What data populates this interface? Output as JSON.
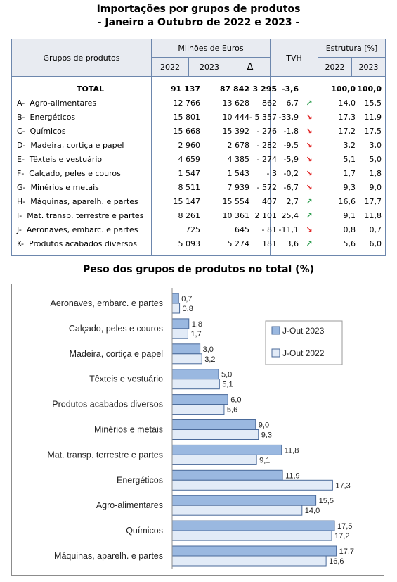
{
  "title_line1": "Importações por grupos de produtos",
  "title_line2": "- Janeiro a Outubro  de 2022 e 2023 -",
  "table": {
    "header": {
      "groups": "Grupos de produtos",
      "millions": "Milhões de Euros",
      "y2022": "2022",
      "y2023": "2023",
      "delta": "Δ",
      "tvh": "TVH",
      "structure": "Estrutura [%]",
      "s2022": "2022",
      "s2023": "2023"
    },
    "rows": [
      {
        "name": "TOTAL",
        "v2022": "91 137",
        "v2023": "87 842",
        "delta": "- 3 295",
        "tvh": "-3,6",
        "trend": "down",
        "s2022": "100,0",
        "s2023": "100,0"
      },
      {
        "name": "A-  Agro-alimentares",
        "v2022": "12 766",
        "v2023": "13 628",
        "delta": "862",
        "tvh": "6,7",
        "trend": "up",
        "s2022": "14,0",
        "s2023": "15,5"
      },
      {
        "name": "B-  Energéticos",
        "v2022": "15 801",
        "v2023": "10 444",
        "delta": "- 5 357",
        "tvh": "-33,9",
        "trend": "down",
        "s2022": "17,3",
        "s2023": "11,9"
      },
      {
        "name": "C-  Químicos",
        "v2022": "15 668",
        "v2023": "15 392",
        "delta": "- 276",
        "tvh": "-1,8",
        "trend": "down",
        "s2022": "17,2",
        "s2023": "17,5"
      },
      {
        "name": "D-  Madeira, cortiça e papel",
        "v2022": "2 960",
        "v2023": "2 678",
        "delta": "- 282",
        "tvh": "-9,5",
        "trend": "down",
        "s2022": "3,2",
        "s2023": "3,0"
      },
      {
        "name": "E-  Têxteis e vestuário",
        "v2022": "4 659",
        "v2023": "4 385",
        "delta": "- 274",
        "tvh": "-5,9",
        "trend": "down",
        "s2022": "5,1",
        "s2023": "5,0"
      },
      {
        "name": "F-  Calçado, peles e couros",
        "v2022": "1 547",
        "v2023": "1 543",
        "delta": "- 3",
        "tvh": "-0,2",
        "trend": "down",
        "s2022": "1,7",
        "s2023": "1,8"
      },
      {
        "name": "G-  Minérios e metais",
        "v2022": "8 511",
        "v2023": "7 939",
        "delta": "- 572",
        "tvh": "-6,7",
        "trend": "down",
        "s2022": "9,3",
        "s2023": "9,0"
      },
      {
        "name": "H-  Máquinas, aparelh. e partes",
        "v2022": "15 147",
        "v2023": "15 554",
        "delta": "407",
        "tvh": "2,7",
        "trend": "up",
        "s2022": "16,6",
        "s2023": "17,7"
      },
      {
        "name": "I-  Mat. transp. terrestre e partes",
        "v2022": "8 261",
        "v2023": "10 361",
        "delta": "2 101",
        "tvh": "25,4",
        "trend": "up",
        "s2022": "9,1",
        "s2023": "11,8"
      },
      {
        "name": "J-  Aeronaves, embarc. e partes",
        "v2022": "725",
        "v2023": "645",
        "delta": "- 81",
        "tvh": "-11,1",
        "trend": "down",
        "s2022": "0,8",
        "s2023": "0,7"
      },
      {
        "name": "K-  Produtos acabados diversos",
        "v2022": "5 093",
        "v2023": "5 274",
        "delta": "181",
        "tvh": "3,6",
        "trend": "up",
        "s2022": "5,6",
        "s2023": "6,0"
      }
    ],
    "trend_symbols": {
      "up": "↗",
      "down": "↘"
    },
    "trend_colors": {
      "up": "#2e9e4f",
      "down": "#e02020"
    }
  },
  "chart_title": "Peso dos grupos de produtos no total (%)",
  "chart_data": {
    "type": "bar",
    "orientation": "horizontal",
    "title": "Peso dos grupos de produtos no total (%)",
    "categories": [
      "Aeronaves, embarc. e partes",
      "Calçado, peles e couros",
      "Madeira, cortiça e papel",
      "Têxteis e vestuário",
      "Produtos acabados diversos",
      "Minérios e metais",
      "Mat. transp. terrestre e partes",
      "Energéticos",
      "Agro-alimentares",
      "Químicos",
      "Máquinas, aparelh. e partes"
    ],
    "series": [
      {
        "name": "J-Out 2023",
        "values": [
          0.7,
          1.8,
          3.0,
          5.0,
          6.0,
          9.0,
          11.8,
          11.9,
          15.5,
          17.5,
          17.7
        ],
        "labels": [
          "0,7",
          "1,8",
          "3,0",
          "5,0",
          "6,0",
          "9,0",
          "11,8",
          "11,9",
          "15,5",
          "17,5",
          "17,7"
        ],
        "color": "#9ab8e0"
      },
      {
        "name": "J-Out 2022",
        "values": [
          0.8,
          1.7,
          3.2,
          5.1,
          5.6,
          9.3,
          9.1,
          17.3,
          14.0,
          17.2,
          16.6
        ],
        "labels": [
          "0,8",
          "1,7",
          "3,2",
          "5,1",
          "5,6",
          "9,3",
          "9,1",
          "17,3",
          "14,0",
          "17,2",
          "16,6"
        ],
        "color": "#e2ebf7"
      }
    ],
    "xlim": [
      0,
      20
    ],
    "legend_position": "right",
    "grid": false,
    "bar_border_color": "#4a6a9a"
  }
}
